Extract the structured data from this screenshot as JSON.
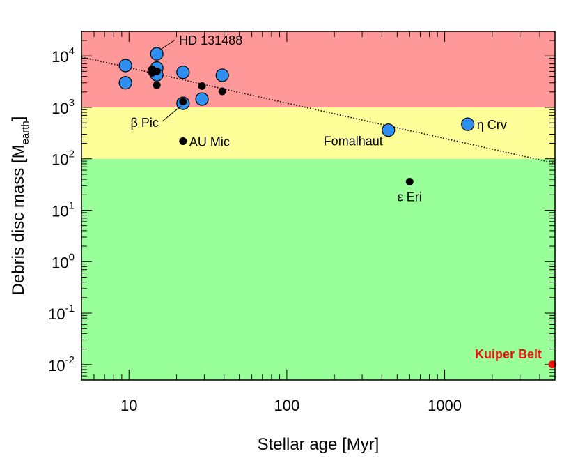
{
  "chart_data": {
    "type": "scatter",
    "title": "",
    "xlabel": "Stellar age [Myr]",
    "ylabel": {
      "main": "Debris disc mass [M",
      "sub": "earth",
      "close": "]"
    },
    "x_scale": "log",
    "y_scale": "log",
    "xlim": [
      5,
      5000
    ],
    "ylim": [
      0.005,
      30000
    ],
    "x_ticks": [
      {
        "value": 10,
        "label": "10"
      },
      {
        "value": 100,
        "label": "100"
      },
      {
        "value": 1000,
        "label": "1000"
      }
    ],
    "y_ticks": [
      {
        "value": 0.01,
        "base": "10",
        "exp": "-2"
      },
      {
        "value": 0.1,
        "base": "10",
        "exp": "-1"
      },
      {
        "value": 1,
        "base": "10",
        "exp": "0"
      },
      {
        "value": 10,
        "base": "10",
        "exp": "1"
      },
      {
        "value": 100,
        "base": "10",
        "exp": "2"
      },
      {
        "value": 1000,
        "base": "10",
        "exp": "3"
      },
      {
        "value": 10000,
        "base": "10",
        "exp": "4"
      }
    ],
    "regions": [
      {
        "from": 1000,
        "to": 30000,
        "color": "#ff9999"
      },
      {
        "from": 100,
        "to": 1000,
        "color": "#ffff99"
      },
      {
        "from": 0.005,
        "to": 100,
        "color": "#99ff99"
      }
    ],
    "trend_line": {
      "x": [
        5,
        5000
      ],
      "y": [
        9500,
        82
      ],
      "style": "dotted",
      "color": "#000000"
    },
    "series": [
      {
        "marker": "large-circle",
        "color": "#2e8ff0",
        "points": [
          {
            "x": 9.5,
            "y": 6500
          },
          {
            "x": 9.5,
            "y": 3000
          },
          {
            "x": 15,
            "y": 11000
          },
          {
            "x": 15,
            "y": 5800
          },
          {
            "x": 15,
            "y": 4300
          },
          {
            "x": 22,
            "y": 4800
          },
          {
            "x": 22,
            "y": 1200
          },
          {
            "x": 29,
            "y": 1450
          },
          {
            "x": 39,
            "y": 4200
          },
          {
            "x": 440,
            "y": 360
          },
          {
            "x": 1400,
            "y": 470
          }
        ]
      },
      {
        "marker": "small-dot",
        "color": "#000000",
        "points": [
          {
            "x": 14,
            "y": 5500
          },
          {
            "x": 14,
            "y": 4700
          },
          {
            "x": 15,
            "y": 5000
          },
          {
            "x": 15,
            "y": 2700
          },
          {
            "x": 22,
            "y": 1300
          },
          {
            "x": 22,
            "y": 220
          },
          {
            "x": 29,
            "y": 2600
          },
          {
            "x": 39,
            "y": 2050
          },
          {
            "x": 600,
            "y": 36
          }
        ]
      },
      {
        "marker": "small-dot",
        "color": "#ee1111",
        "points": [
          {
            "x": 4800,
            "y": 0.01
          }
        ]
      }
    ],
    "annotations": [
      {
        "text": "HD 131488",
        "x": 15,
        "y": 11000,
        "leader": true
      },
      {
        "text": "β Pic",
        "x": 22,
        "y": 1200,
        "leader": true
      },
      {
        "text": "AU Mic",
        "x": 22,
        "y": 220,
        "leader": false
      },
      {
        "text": "Fomalhaut",
        "x": 440,
        "y": 360,
        "leader": false
      },
      {
        "text": "η Crv",
        "x": 1400,
        "y": 470,
        "leader": false
      },
      {
        "text": "ε Eri",
        "x": 600,
        "y": 36,
        "leader": false
      },
      {
        "text": "Kuiper Belt",
        "x": 4800,
        "y": 0.01,
        "leader": false,
        "color": "#ee1111"
      }
    ]
  }
}
